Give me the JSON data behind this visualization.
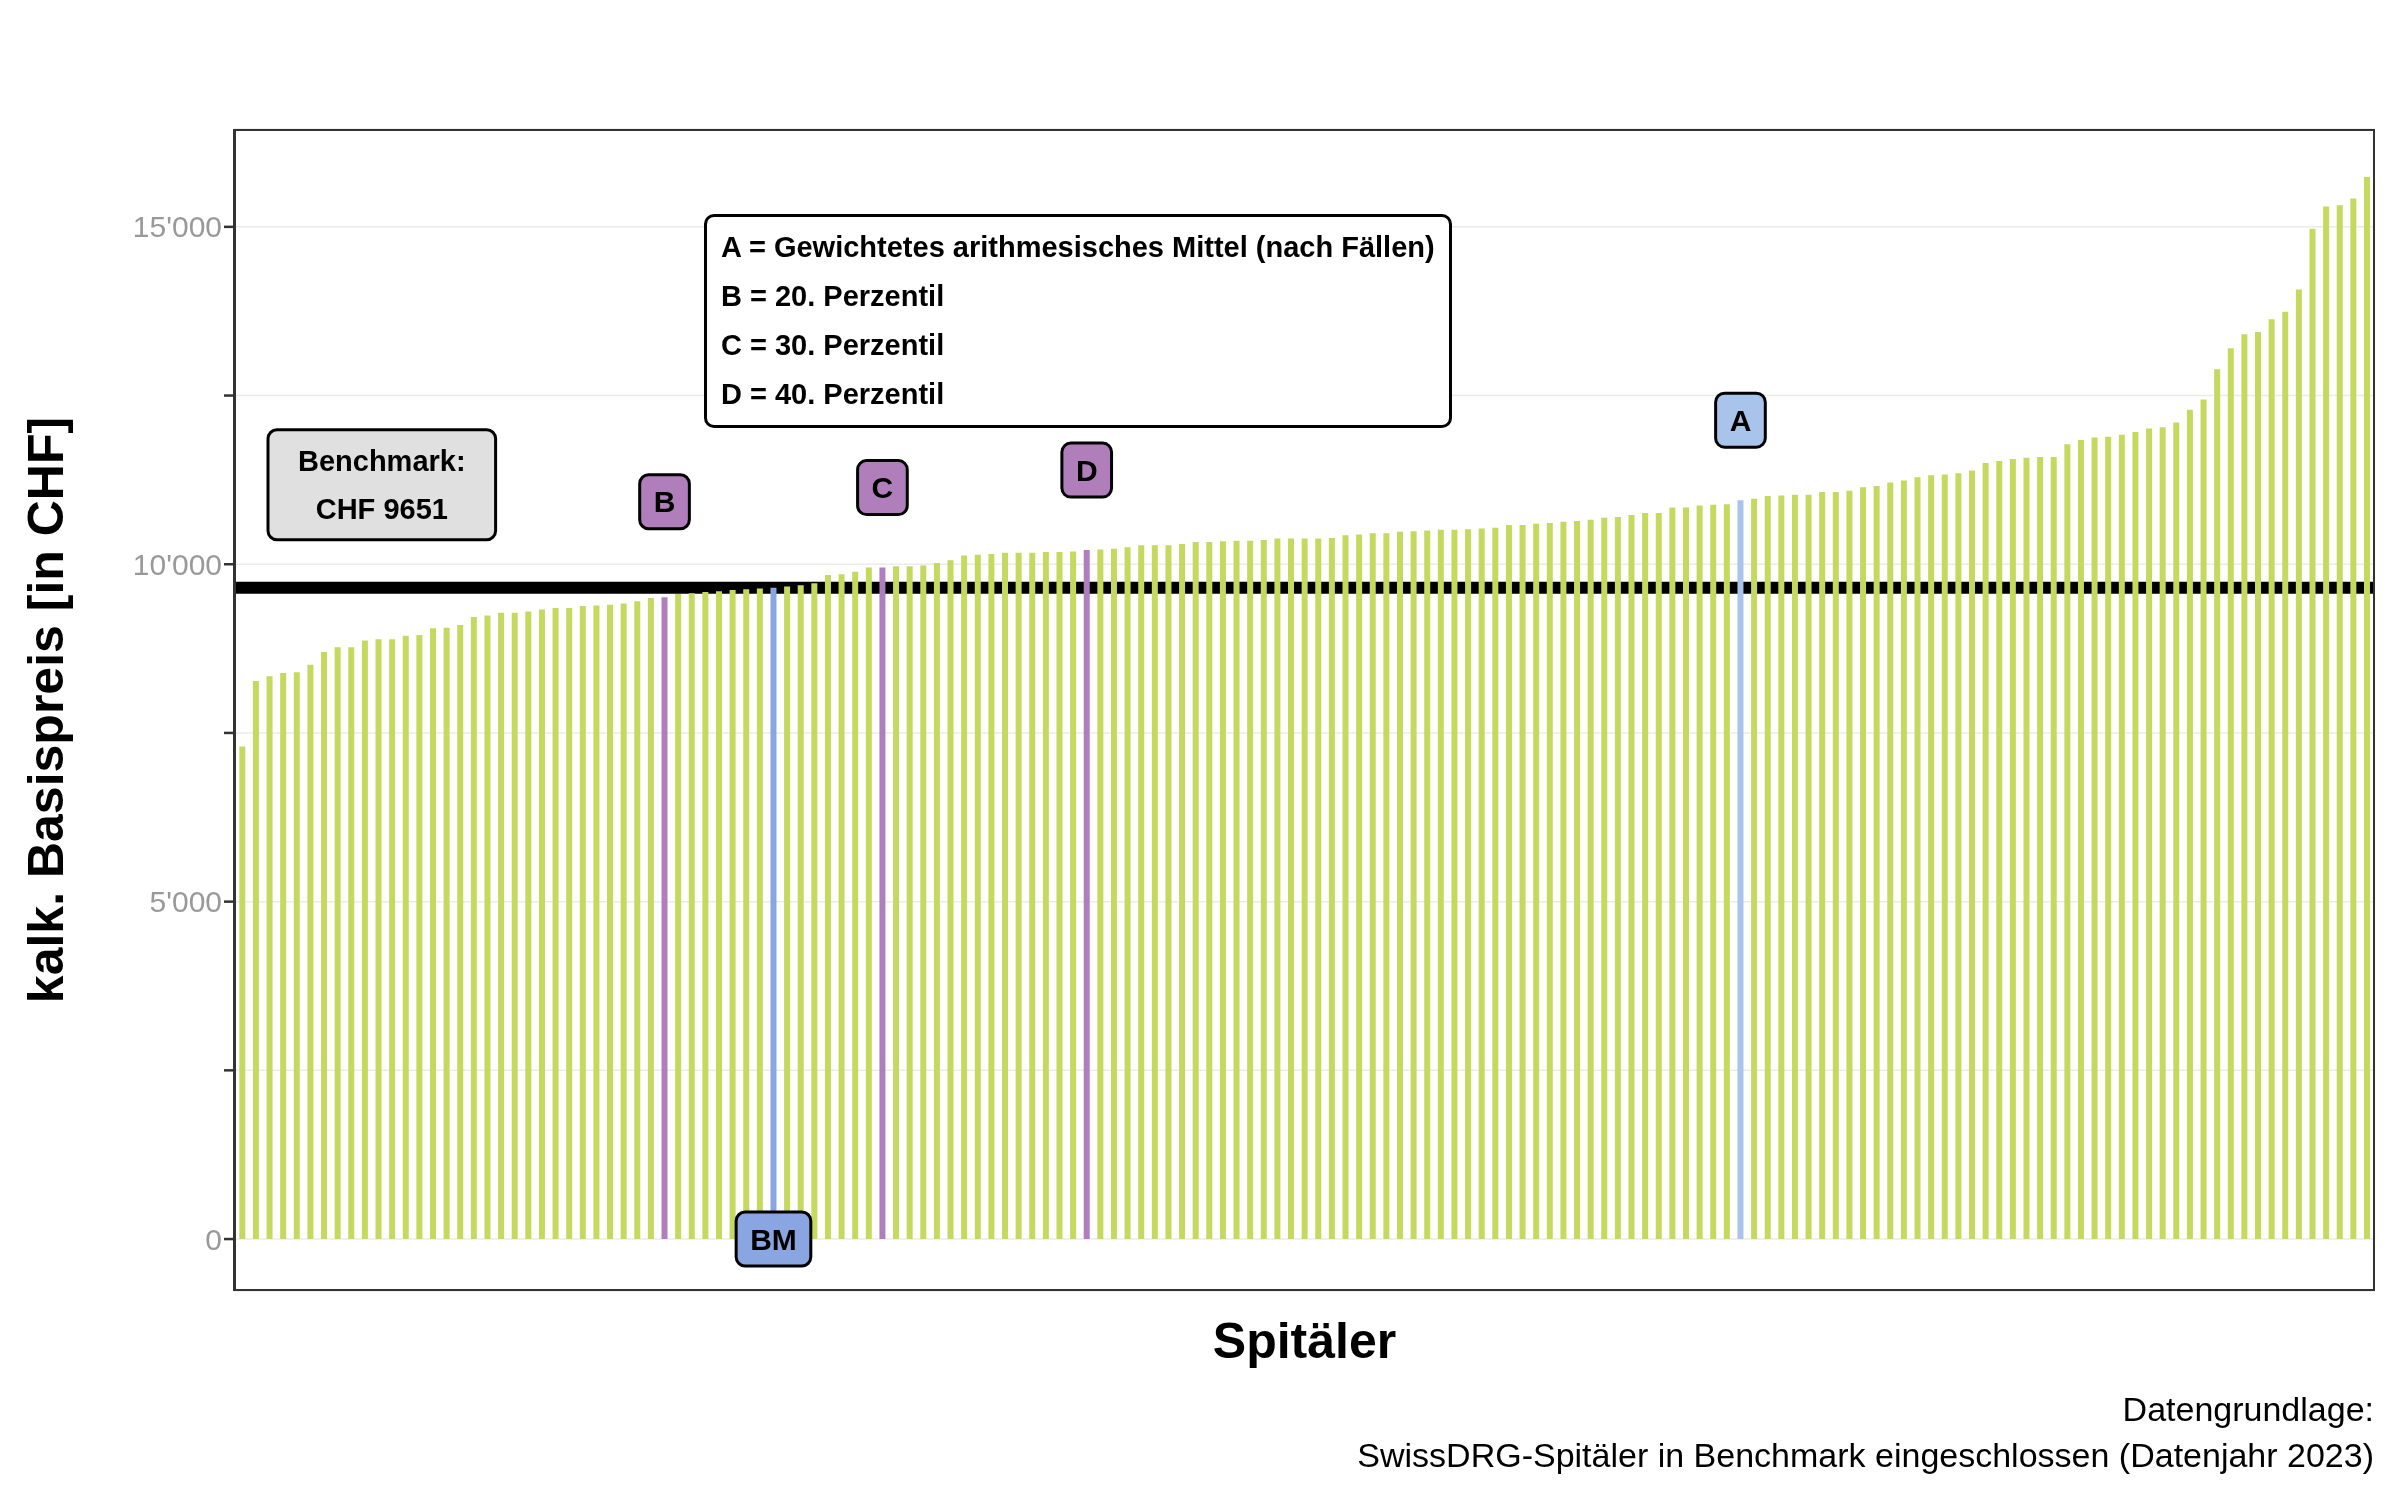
{
  "chart_data": {
    "type": "bar",
    "stacked": true,
    "xlabel": "Spitäler",
    "ylabel": "kalk. Basispreis [in CHF]",
    "categories": [
      null,
      null,
      null,
      null,
      null,
      null,
      null,
      null,
      null,
      null,
      null,
      null,
      null,
      null,
      null,
      null,
      null,
      null,
      null,
      null,
      null,
      null,
      null,
      null,
      null,
      null,
      null,
      null,
      null,
      null,
      null,
      null,
      null,
      null,
      null,
      null,
      null,
      null,
      null,
      null,
      null,
      null,
      null,
      null,
      null,
      null,
      null,
      null,
      null,
      null,
      null,
      null,
      null,
      null,
      null,
      null,
      null,
      null,
      null,
      null,
      null,
      null,
      null,
      null,
      null,
      null,
      null,
      null,
      null,
      null,
      null,
      null,
      null,
      null,
      null,
      null,
      null,
      null,
      null,
      null,
      null,
      null,
      null,
      null,
      null,
      null,
      null,
      null,
      null,
      null,
      null,
      null,
      null,
      null,
      null,
      null,
      null,
      null,
      null,
      null,
      null,
      null,
      null,
      null,
      null,
      null,
      null,
      null,
      null,
      null,
      null,
      null,
      null,
      null,
      null,
      null,
      null,
      null,
      null,
      null,
      null,
      null,
      null,
      null,
      null,
      null,
      null,
      null,
      null,
      null,
      null,
      null,
      null,
      null,
      null,
      null,
      null,
      null,
      null,
      null,
      null,
      null,
      null,
      null,
      null,
      null,
      null,
      null,
      null,
      null,
      null,
      null,
      null,
      null,
      null,
      null,
      null
    ],
    "series": [
      {
        "color": "#c5d95f",
        "values": [
          7300,
          8270,
          8340,
          8390,
          8400,
          8510,
          8700,
          8770,
          8770,
          8870,
          8890,
          8890,
          8940,
          8950,
          9050,
          9060,
          9100,
          9220,
          9240,
          9280,
          9280,
          9300,
          9330,
          9350,
          9350,
          9380,
          9390,
          9400,
          9420,
          9450,
          9500,
          null,
          9560,
          9570,
          9590,
          9600,
          9620,
          9630,
          9640,
          null,
          9670,
          9690,
          9720,
          9840,
          9850,
          9890,
          9950,
          null,
          9970,
          9970,
          9980,
          10020,
          10060,
          10130,
          10140,
          10150,
          10170,
          10170,
          10170,
          10180,
          10180,
          10190,
          null,
          10220,
          10230,
          10250,
          10280,
          10280,
          10280,
          10300,
          10330,
          10330,
          10340,
          10350,
          10350,
          10360,
          10380,
          10380,
          10380,
          10380,
          10390,
          10430,
          10440,
          10460,
          10460,
          10480,
          10490,
          10500,
          10510,
          10510,
          10520,
          10530,
          10540,
          10580,
          10580,
          10600,
          10610,
          10630,
          10640,
          10660,
          10690,
          10700,
          10730,
          10760,
          10760,
          10840,
          10840,
          10870,
          10880,
          10890,
          null,
          10970,
          11010,
          11020,
          11030,
          11030,
          11070,
          11070,
          11090,
          11140,
          11160,
          11210,
          11240,
          11290,
          11320,
          11330,
          11350,
          11390,
          11500,
          11530,
          11560,
          11580,
          11590,
          11590,
          11780,
          11840,
          11880,
          11890,
          11920,
          11960,
          12010,
          12030,
          12100,
          12290,
          12440,
          12890,
          13200,
          13410,
          13440,
          13630,
          13740,
          14070,
          14970,
          15300,
          15320,
          15420,
          15740
        ]
      },
      {
        "name": "B",
        "color": "#b07fbb",
        "values": [
          null,
          null,
          null,
          null,
          null,
          null,
          null,
          null,
          null,
          null,
          null,
          null,
          null,
          null,
          null,
          null,
          null,
          null,
          null,
          null,
          null,
          null,
          null,
          null,
          null,
          null,
          null,
          null,
          null,
          null,
          null,
          9510,
          null,
          null,
          null,
          null,
          null,
          null,
          null,
          null,
          null,
          null,
          null,
          null,
          null,
          null,
          null,
          null,
          null,
          null,
          null,
          null,
          null,
          null,
          null,
          null,
          null,
          null,
          null,
          null,
          null,
          null,
          null,
          null,
          null,
          null,
          null,
          null,
          null,
          null,
          null,
          null,
          null,
          null,
          null,
          null,
          null,
          null,
          null,
          null,
          null,
          null,
          null,
          null,
          null,
          null,
          null,
          null,
          null,
          null,
          null,
          null,
          null,
          null,
          null,
          null,
          null,
          null,
          null,
          null,
          null,
          null,
          null,
          null,
          null,
          null,
          null,
          null,
          null,
          null,
          null,
          null,
          null,
          null,
          null,
          null,
          null,
          null,
          null,
          null,
          null,
          null,
          null,
          null,
          null,
          null,
          null,
          null,
          null,
          null,
          null,
          null,
          null,
          null,
          null,
          null,
          null,
          null,
          null,
          null,
          null,
          null,
          null,
          null,
          null,
          null,
          null,
          null,
          null,
          null,
          null,
          null,
          null,
          null,
          null,
          null,
          null
        ]
      },
      {
        "name": "BM",
        "color": "#8aa6e2",
        "values": [
          null,
          null,
          null,
          null,
          null,
          null,
          null,
          null,
          null,
          null,
          null,
          null,
          null,
          null,
          null,
          null,
          null,
          null,
          null,
          null,
          null,
          null,
          null,
          null,
          null,
          null,
          null,
          null,
          null,
          null,
          null,
          null,
          null,
          null,
          null,
          null,
          null,
          null,
          null,
          9650,
          null,
          null,
          null,
          null,
          null,
          null,
          null,
          null,
          null,
          null,
          null,
          null,
          null,
          null,
          null,
          null,
          null,
          null,
          null,
          null,
          null,
          null,
          null,
          null,
          null,
          null,
          null,
          null,
          null,
          null,
          null,
          null,
          null,
          null,
          null,
          null,
          null,
          null,
          null,
          null,
          null,
          null,
          null,
          null,
          null,
          null,
          null,
          null,
          null,
          null,
          null,
          null,
          null,
          null,
          null,
          null,
          null,
          null,
          null,
          null,
          null,
          null,
          null,
          null,
          null,
          null,
          null,
          null,
          null,
          null,
          null,
          null,
          null,
          null,
          null,
          null,
          null,
          null,
          null,
          null,
          null,
          null,
          null,
          null,
          null,
          null,
          null,
          null,
          null,
          null,
          null,
          null,
          null,
          null,
          null,
          null,
          null,
          null,
          null,
          null,
          null,
          null,
          null,
          null,
          null,
          null,
          null,
          null,
          null,
          null,
          null,
          null,
          null,
          null,
          null,
          null,
          null
        ]
      },
      {
        "name": "C",
        "color": "#b07fbb",
        "values": [
          null,
          null,
          null,
          null,
          null,
          null,
          null,
          null,
          null,
          null,
          null,
          null,
          null,
          null,
          null,
          null,
          null,
          null,
          null,
          null,
          null,
          null,
          null,
          null,
          null,
          null,
          null,
          null,
          null,
          null,
          null,
          null,
          null,
          null,
          null,
          null,
          null,
          null,
          null,
          null,
          null,
          null,
          null,
          null,
          null,
          null,
          null,
          9950,
          null,
          null,
          null,
          null,
          null,
          null,
          null,
          null,
          null,
          null,
          null,
          null,
          null,
          null,
          null,
          null,
          null,
          null,
          null,
          null,
          null,
          null,
          null,
          null,
          null,
          null,
          null,
          null,
          null,
          null,
          null,
          null,
          null,
          null,
          null,
          null,
          null,
          null,
          null,
          null,
          null,
          null,
          null,
          null,
          null,
          null,
          null,
          null,
          null,
          null,
          null,
          null,
          null,
          null,
          null,
          null,
          null,
          null,
          null,
          null,
          null,
          null,
          null,
          null,
          null,
          null,
          null,
          null,
          null,
          null,
          null,
          null,
          null,
          null,
          null,
          null,
          null,
          null,
          null,
          null,
          null,
          null,
          null,
          null,
          null,
          null,
          null,
          null,
          null,
          null,
          null,
          null,
          null,
          null,
          null,
          null,
          null,
          null,
          null,
          null,
          null,
          null,
          null,
          null,
          null,
          null,
          null,
          null,
          null
        ]
      },
      {
        "name": "D",
        "color": "#b07fbb",
        "values": [
          null,
          null,
          null,
          null,
          null,
          null,
          null,
          null,
          null,
          null,
          null,
          null,
          null,
          null,
          null,
          null,
          null,
          null,
          null,
          null,
          null,
          null,
          null,
          null,
          null,
          null,
          null,
          null,
          null,
          null,
          null,
          null,
          null,
          null,
          null,
          null,
          null,
          null,
          null,
          null,
          null,
          null,
          null,
          null,
          null,
          null,
          null,
          null,
          null,
          null,
          null,
          null,
          null,
          null,
          null,
          null,
          null,
          null,
          null,
          null,
          null,
          null,
          10210,
          null,
          null,
          null,
          null,
          null,
          null,
          null,
          null,
          null,
          null,
          null,
          null,
          null,
          null,
          null,
          null,
          null,
          null,
          null,
          null,
          null,
          null,
          null,
          null,
          null,
          null,
          null,
          null,
          null,
          null,
          null,
          null,
          null,
          null,
          null,
          null,
          null,
          null,
          null,
          null,
          null,
          null,
          null,
          null,
          null,
          null,
          null,
          null,
          null,
          null,
          null,
          null,
          null,
          null,
          null,
          null,
          null,
          null,
          null,
          null,
          null,
          null,
          null,
          null,
          null,
          null,
          null,
          null,
          null,
          null,
          null,
          null,
          null,
          null,
          null,
          null,
          null,
          null,
          null,
          null,
          null,
          null,
          null,
          null,
          null,
          null,
          null,
          null,
          null,
          null,
          null,
          null,
          null,
          null
        ]
      },
      {
        "name": "A",
        "color": "#a9c4ea",
        "values": [
          null,
          null,
          null,
          null,
          null,
          null,
          null,
          null,
          null,
          null,
          null,
          null,
          null,
          null,
          null,
          null,
          null,
          null,
          null,
          null,
          null,
          null,
          null,
          null,
          null,
          null,
          null,
          null,
          null,
          null,
          null,
          null,
          null,
          null,
          null,
          null,
          null,
          null,
          null,
          null,
          null,
          null,
          null,
          null,
          null,
          null,
          null,
          null,
          null,
          null,
          null,
          null,
          null,
          null,
          null,
          null,
          null,
          null,
          null,
          null,
          null,
          null,
          null,
          null,
          null,
          null,
          null,
          null,
          null,
          null,
          null,
          null,
          null,
          null,
          null,
          null,
          null,
          null,
          null,
          null,
          null,
          null,
          null,
          null,
          null,
          null,
          null,
          null,
          null,
          null,
          null,
          null,
          null,
          null,
          null,
          null,
          null,
          null,
          null,
          null,
          null,
          null,
          null,
          null,
          null,
          null,
          null,
          null,
          null,
          null,
          10950,
          null,
          null,
          null,
          null,
          null,
          null,
          null,
          null,
          null,
          null,
          null,
          null,
          null,
          null,
          null,
          null,
          null,
          null,
          null,
          null,
          null,
          null,
          null,
          null,
          null,
          null,
          null,
          null,
          null,
          null,
          null,
          null,
          null,
          null,
          null,
          null,
          null,
          null,
          null,
          null,
          null,
          null,
          null,
          null,
          null,
          null
        ]
      }
    ],
    "ylim": [
      -770,
      16450
    ],
    "yticks": [
      0,
      {
        "value": 2500,
        "label": null
      },
      {
        "value": 5000,
        "label": "5'000"
      },
      {
        "value": 7500,
        "label": null
      },
      {
        "value": 10000,
        "label": "10'000"
      },
      {
        "value": 12500,
        "label": null
      },
      {
        "value": 15000,
        "label": "15'000"
      }
    ],
    "grid": "y",
    "tick_labels": "y",
    "ref_lines": [
      {
        "axis": "y",
        "value": 9651,
        "label": "Benchmark:\nCHF 9651",
        "color": "#000000"
      }
    ],
    "annotations": [
      "A = Gewichtetes arithmesisches Mittel (nach Fällen)\nB = 20. Perzentil\nC = 30. Perzentil\nD = 40. Perzentil",
      "Datengrundlage:\nSwissDRG-Spitäler in Benchmark eingeschlossen (Datenjahr 2023)"
    ]
  }
}
